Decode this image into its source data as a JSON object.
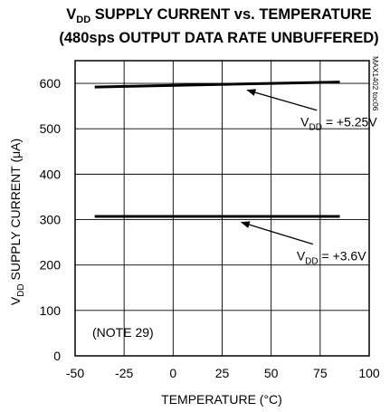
{
  "chart_data": {
    "type": "line",
    "title_line1": {
      "pre": "V",
      "sub": "DD",
      "post": " SUPPLY CURRENT vs. TEMPERATURE"
    },
    "title_line2": "(480sps OUTPUT DATA RATE UNBUFFERED)",
    "xlabel": "TEMPERATURE (°C)",
    "ylabel": {
      "pre": "V",
      "sub": "DD",
      "post": " SUPPLY CURRENT (μA)"
    },
    "xlim": [
      -50,
      100
    ],
    "ylim": [
      0,
      650
    ],
    "x_ticks": [
      -50,
      -25,
      0,
      25,
      50,
      75,
      100
    ],
    "y_ticks": [
      0,
      100,
      200,
      300,
      400,
      500,
      600
    ],
    "grid": true,
    "series": [
      {
        "name": "VDD = +5.25V",
        "x": [
          -40,
          85
        ],
        "y": [
          592,
          603
        ]
      },
      {
        "name": "VDD = +3.6V",
        "x": [
          -40,
          85
        ],
        "y": [
          307,
          307
        ]
      }
    ],
    "annotations": [
      {
        "id": "ann1",
        "pre": "V",
        "sub": "DD",
        "post": " = +5.25V",
        "arrow_to": [
          36,
          597
        ],
        "label_at": [
          65,
          505
        ]
      },
      {
        "id": "ann2",
        "pre": "V",
        "sub": "DD",
        "post": " = +3.6V",
        "arrow_to": [
          33,
          306
        ],
        "label_at": [
          63,
          210
        ]
      }
    ],
    "note": "(NOTE 29)",
    "code": "MAX1402 toc06"
  }
}
